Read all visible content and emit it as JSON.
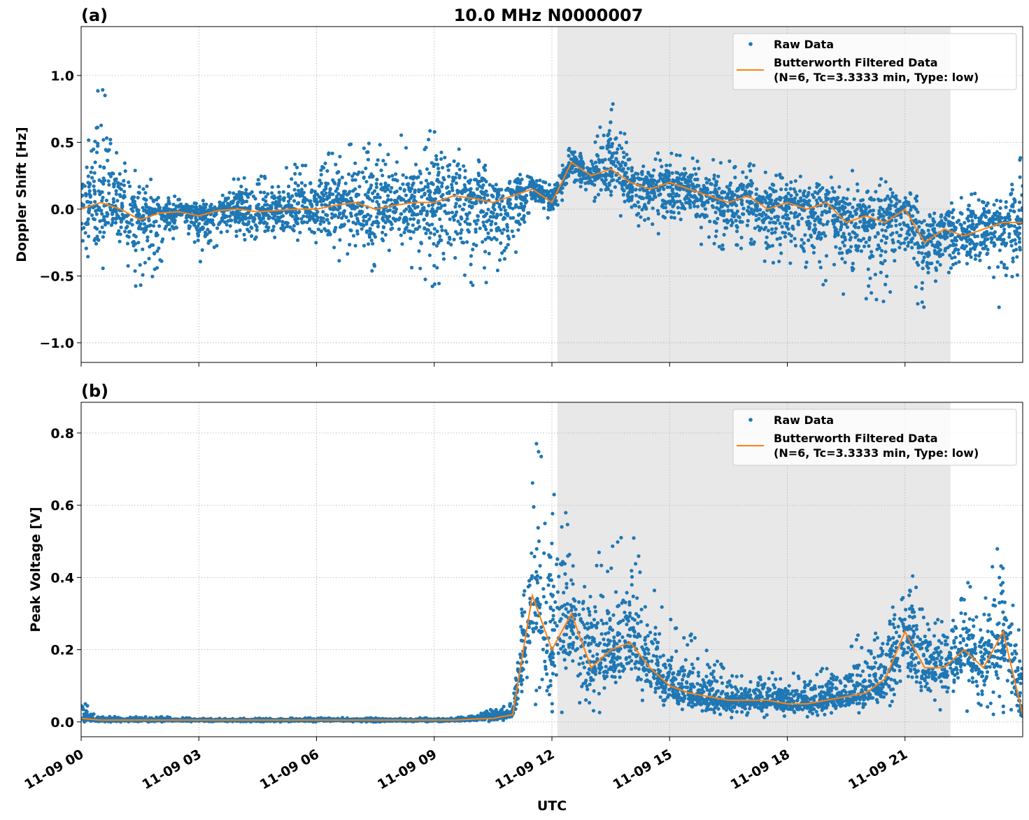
{
  "title": "10.0 MHz N0000007",
  "xlabel": "UTC",
  "x_tick_labels": [
    "11-09 00",
    "11-09 03",
    "11-09 06",
    "11-09 09",
    "11-09 12",
    "11-09 15",
    "11-09 18",
    "11-09 21"
  ],
  "legend": {
    "raw": "Raw Data",
    "filtered_line1": "Butterworth Filtered Data",
    "filtered_line2": "(N=6, Tc=3.3333 min, Type: low)"
  },
  "colors": {
    "raw": "#1f77b4",
    "filtered": "#ff7f0e",
    "shade": "#e8e8e8"
  },
  "chart_data": [
    {
      "type": "scatter",
      "panel_label": "(a)",
      "ylabel": "Doppler Shift [Hz]",
      "xlim_hours": [
        0,
        24
      ],
      "ylim": [
        -1.147,
        1.366
      ],
      "y_ticks": [
        -1.0,
        -0.5,
        0.0,
        0.5,
        1.0
      ],
      "y_tick_labels": [
        "−1.0",
        "−0.5",
        "0.0",
        "0.5",
        "1.0"
      ],
      "shaded_hours": [
        12.14,
        22.16
      ],
      "grid": true,
      "legend_position": "top-right",
      "x_hours": [
        0,
        0.5,
        1,
        1.5,
        2,
        2.5,
        3,
        3.5,
        4,
        4.5,
        5,
        5.5,
        6,
        6.5,
        7,
        7.5,
        8,
        8.5,
        9,
        9.5,
        10,
        10.5,
        11,
        11.5,
        12,
        12.5,
        13,
        13.5,
        14,
        14.5,
        15,
        15.5,
        16,
        16.5,
        17,
        17.5,
        18,
        18.5,
        19,
        19.5,
        20,
        20.5,
        21,
        21.5,
        22,
        22.5,
        23,
        23.5,
        24
      ],
      "filtered": [
        0.0,
        0.05,
        0.0,
        -0.08,
        -0.03,
        -0.02,
        -0.05,
        -0.01,
        0.0,
        -0.02,
        -0.01,
        0.0,
        0.0,
        0.03,
        0.05,
        0.0,
        0.03,
        0.05,
        0.05,
        0.1,
        0.08,
        0.05,
        0.1,
        0.15,
        0.05,
        0.35,
        0.25,
        0.3,
        0.2,
        0.15,
        0.2,
        0.15,
        0.1,
        0.05,
        0.1,
        0.0,
        0.05,
        0.0,
        0.05,
        -0.1,
        -0.05,
        -0.1,
        0.0,
        -0.25,
        -0.15,
        -0.2,
        -0.15,
        -0.1,
        -0.1
      ],
      "raw_lower": [
        -0.5,
        -0.5,
        -0.3,
        -0.7,
        -0.5,
        -0.1,
        -0.5,
        -0.3,
        -0.3,
        -0.3,
        -0.3,
        -0.3,
        -0.25,
        -0.4,
        -0.4,
        -0.5,
        -0.45,
        -0.5,
        -0.6,
        -0.6,
        -0.7,
        -0.5,
        -0.6,
        0.0,
        -0.1,
        0.1,
        0.05,
        0.1,
        -0.2,
        -0.1,
        -0.3,
        -0.2,
        -0.4,
        -0.4,
        -0.3,
        -0.5,
        -0.4,
        -0.5,
        -0.6,
        -0.7,
        -0.7,
        -0.7,
        -0.5,
        -0.85,
        -0.5,
        -0.6,
        -0.5,
        -0.85,
        -0.7
      ],
      "raw_upper": [
        0.4,
        1.0,
        0.5,
        0.4,
        0.1,
        0.1,
        0.1,
        0.1,
        0.3,
        0.3,
        0.3,
        0.35,
        0.4,
        0.5,
        0.6,
        0.55,
        0.55,
        0.6,
        0.7,
        0.7,
        0.5,
        0.35,
        0.35,
        0.3,
        0.2,
        0.55,
        0.4,
        0.9,
        0.45,
        0.4,
        0.45,
        0.4,
        0.4,
        0.4,
        0.35,
        0.3,
        0.3,
        0.3,
        0.3,
        0.3,
        0.3,
        0.3,
        0.2,
        0.15,
        0.1,
        0.25,
        0.2,
        0.15,
        0.6
      ]
    },
    {
      "type": "scatter",
      "panel_label": "(b)",
      "ylabel": "Peak Voltage [V]",
      "xlim_hours": [
        0,
        24
      ],
      "ylim": [
        -0.041,
        0.885
      ],
      "y_ticks": [
        0.0,
        0.2,
        0.4,
        0.6,
        0.8
      ],
      "y_tick_labels": [
        "0.0",
        "0.2",
        "0.4",
        "0.6",
        "0.8"
      ],
      "shaded_hours": [
        12.14,
        22.16
      ],
      "grid": true,
      "legend_position": "top-right",
      "x_hours": [
        0,
        0.5,
        1,
        1.5,
        2,
        2.5,
        3,
        3.5,
        4,
        4.5,
        5,
        5.5,
        6,
        6.5,
        7,
        7.5,
        8,
        8.5,
        9,
        9.5,
        10,
        10.5,
        11,
        11.5,
        12,
        12.5,
        13,
        13.5,
        14,
        14.5,
        15,
        15.5,
        16,
        16.5,
        17,
        17.5,
        18,
        18.5,
        19,
        19.5,
        20,
        20.5,
        21,
        21.5,
        22,
        22.5,
        23,
        23.5,
        24
      ],
      "filtered": [
        0.01,
        0.005,
        0.005,
        0.005,
        0.005,
        0.005,
        0.005,
        0.005,
        0.005,
        0.005,
        0.005,
        0.005,
        0.005,
        0.005,
        0.005,
        0.005,
        0.005,
        0.005,
        0.005,
        0.005,
        0.008,
        0.01,
        0.02,
        0.35,
        0.2,
        0.3,
        0.15,
        0.2,
        0.22,
        0.15,
        0.1,
        0.08,
        0.07,
        0.06,
        0.06,
        0.06,
        0.05,
        0.05,
        0.06,
        0.07,
        0.08,
        0.12,
        0.25,
        0.15,
        0.15,
        0.2,
        0.15,
        0.25,
        0.02
      ],
      "raw_lower": [
        0.0,
        0.0,
        0.0,
        0.0,
        0.0,
        0.0,
        0.0,
        0.0,
        0.0,
        0.0,
        0.0,
        0.0,
        0.0,
        0.0,
        0.0,
        0.0,
        0.0,
        0.0,
        0.0,
        0.0,
        0.0,
        0.0,
        0.0,
        0.05,
        0.02,
        0.03,
        0.02,
        0.03,
        0.03,
        0.02,
        0.02,
        0.02,
        0.01,
        0.01,
        0.01,
        0.01,
        0.01,
        0.01,
        0.02,
        0.02,
        0.02,
        0.02,
        0.02,
        0.02,
        0.02,
        0.03,
        0.02,
        0.02,
        0.0
      ],
      "raw_upper": [
        0.06,
        0.015,
        0.015,
        0.015,
        0.015,
        0.012,
        0.01,
        0.01,
        0.01,
        0.01,
        0.01,
        0.012,
        0.012,
        0.012,
        0.012,
        0.012,
        0.012,
        0.012,
        0.012,
        0.015,
        0.02,
        0.04,
        0.06,
        0.8,
        0.7,
        0.55,
        0.45,
        0.5,
        0.55,
        0.4,
        0.3,
        0.25,
        0.2,
        0.15,
        0.13,
        0.15,
        0.13,
        0.15,
        0.16,
        0.2,
        0.3,
        0.3,
        0.55,
        0.35,
        0.3,
        0.4,
        0.35,
        0.55,
        0.2
      ]
    }
  ]
}
